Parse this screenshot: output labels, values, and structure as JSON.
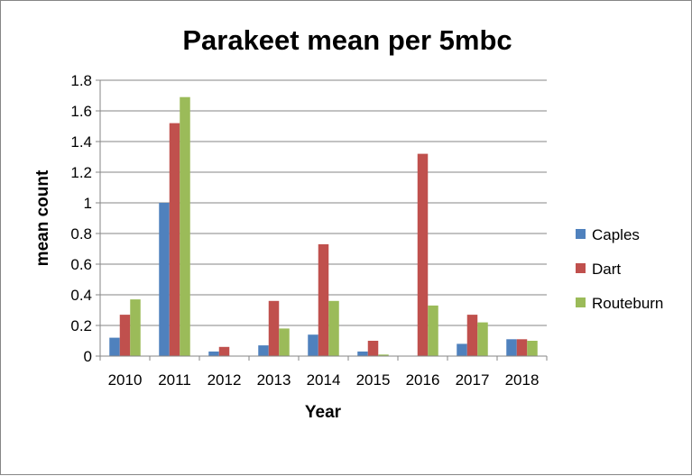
{
  "chart_data": {
    "type": "bar",
    "title": "Parakeet mean per 5mbc",
    "xlabel": "Year",
    "ylabel": "mean count",
    "categories": [
      "2010",
      "2011",
      "2012",
      "2013",
      "2014",
      "2015",
      "2016",
      "2017",
      "2018"
    ],
    "series": [
      {
        "name": "Caples",
        "color": "#4f81bd",
        "values": [
          0.12,
          1.0,
          0.03,
          0.07,
          0.14,
          0.03,
          0.0,
          0.08,
          0.11
        ]
      },
      {
        "name": "Dart",
        "color": "#c0504d",
        "values": [
          0.27,
          1.52,
          0.06,
          0.36,
          0.73,
          0.1,
          1.32,
          0.27,
          0.11
        ]
      },
      {
        "name": "Routeburn",
        "color": "#9bbb59",
        "values": [
          0.37,
          1.69,
          0.0,
          0.18,
          0.36,
          0.01,
          0.33,
          0.22,
          0.1
        ]
      }
    ],
    "ylim": [
      0,
      1.8
    ],
    "yticks": [
      "0",
      "0.2",
      "0.4",
      "0.6",
      "0.8",
      "1",
      "1.2",
      "1.4",
      "1.6",
      "1.8"
    ],
    "grid": true,
    "legend_position": "right"
  }
}
